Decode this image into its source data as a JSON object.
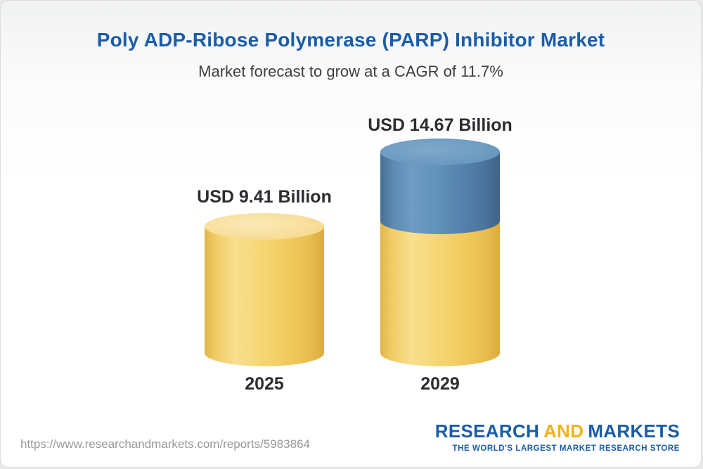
{
  "header": {
    "title": "Poly ADP-Ribose Polymerase (PARP) Inhibitor Market",
    "subtitle": "Market forecast to grow at a CAGR of 11.7%"
  },
  "chart_data": {
    "type": "bar",
    "variant": "3d-cylinder",
    "title": "Poly ADP-Ribose Polymerase (PARP) Inhibitor Market",
    "subtitle": "Market forecast to grow at a CAGR of 11.7%",
    "cagr_percent": 11.7,
    "unit": "USD Billion",
    "categories": [
      "2025",
      "2029"
    ],
    "values": [
      9.41,
      14.67
    ],
    "value_labels": [
      "USD 9.41 Billion",
      "USD 14.67 Billion"
    ],
    "series_note": "2029 bar shows 2025 base in gold with incremental growth segment in blue stacked on top",
    "colors": {
      "base_segment": "#F3CC60",
      "growth_segment": "#5585B0",
      "title_text": "#1A5DA8",
      "label_text": "#2B2D30"
    },
    "legend": "none",
    "grid": false,
    "axes_hidden": true
  },
  "footer": {
    "url": "https://www.researchandmarkets.com/reports/5983864",
    "logo": {
      "part1": "RESEARCH",
      "part2": "AND",
      "part3": "MARKETS",
      "tagline": "THE WORLD'S LARGEST MARKET RESEARCH STORE"
    }
  }
}
